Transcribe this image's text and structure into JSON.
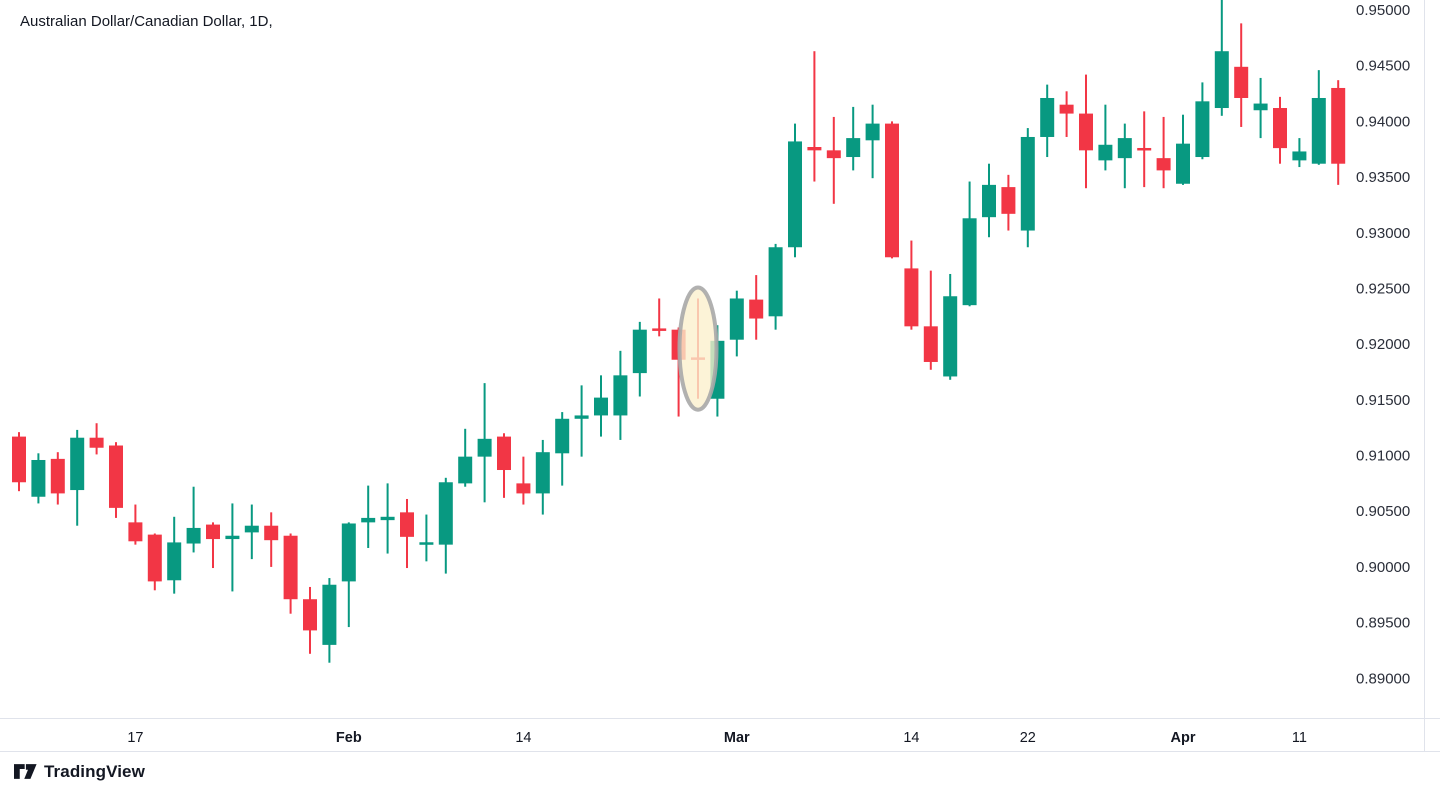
{
  "header": {
    "title": "Australian Dollar/Canadian Dollar, 1D,"
  },
  "attribution": {
    "brand": "TradingView"
  },
  "colors": {
    "up": "#089981",
    "down": "#f23645",
    "text": "#131722",
    "axis_text": "#2a2e39",
    "border": "#e0e3eb",
    "background": "#ffffff",
    "highlight_fill": "#fbf0cc",
    "highlight_stroke": "#a9a9a9"
  },
  "price_axis": {
    "labels": [
      "0.95000",
      "0.94500",
      "0.94000",
      "0.93500",
      "0.93000",
      "0.92500",
      "0.92000",
      "0.91500",
      "0.91000",
      "0.90500",
      "0.90000",
      "0.89500",
      "0.89000"
    ]
  },
  "time_axis": {
    "labels": [
      {
        "text": "17",
        "candle_index": 6,
        "bold": false
      },
      {
        "text": "Feb",
        "candle_index": 17,
        "bold": true
      },
      {
        "text": "14",
        "candle_index": 26,
        "bold": false
      },
      {
        "text": "Mar",
        "candle_index": 37,
        "bold": true
      },
      {
        "text": "14",
        "candle_index": 46,
        "bold": false
      },
      {
        "text": "22",
        "candle_index": 52,
        "bold": false
      },
      {
        "text": "Apr",
        "candle_index": 60,
        "bold": true
      },
      {
        "text": "11",
        "candle_index": 66,
        "bold": false
      }
    ]
  },
  "chart_data": {
    "type": "candlestick",
    "title": "Australian Dollar/Canadian Dollar",
    "interval": "1D",
    "ylabel": "Price",
    "ylim": [
      0.8875,
      0.951
    ],
    "axis_top_price": 0.95,
    "axis_bottom_price": 0.89,
    "axis_step": 0.005,
    "grid": false,
    "legend_position": "none",
    "highlight": {
      "candle_index": 35,
      "shape": "ellipse",
      "note": "highlighted doji candle"
    },
    "candles": [
      {
        "t": "Jan 7",
        "o": 0.9117,
        "h": 0.9121,
        "l": 0.9068,
        "c": 0.9076
      },
      {
        "t": "Jan 10",
        "o": 0.9063,
        "h": 0.9102,
        "l": 0.9057,
        "c": 0.9096
      },
      {
        "t": "Jan 11",
        "o": 0.9097,
        "h": 0.9103,
        "l": 0.9056,
        "c": 0.9066
      },
      {
        "t": "Jan 12",
        "o": 0.9069,
        "h": 0.9123,
        "l": 0.9037,
        "c": 0.9116
      },
      {
        "t": "Jan 13",
        "o": 0.9116,
        "h": 0.9129,
        "l": 0.9101,
        "c": 0.9107
      },
      {
        "t": "Jan 14",
        "o": 0.9109,
        "h": 0.9112,
        "l": 0.9044,
        "c": 0.9053
      },
      {
        "t": "Jan 17",
        "o": 0.904,
        "h": 0.9056,
        "l": 0.902,
        "c": 0.9023
      },
      {
        "t": "Jan 18",
        "o": 0.9029,
        "h": 0.903,
        "l": 0.8979,
        "c": 0.8987
      },
      {
        "t": "Jan 19",
        "o": 0.8988,
        "h": 0.9045,
        "l": 0.8976,
        "c": 0.9022
      },
      {
        "t": "Jan 20",
        "o": 0.9021,
        "h": 0.9072,
        "l": 0.9013,
        "c": 0.9035
      },
      {
        "t": "Jan 21",
        "o": 0.9038,
        "h": 0.904,
        "l": 0.8999,
        "c": 0.9025
      },
      {
        "t": "Jan 24",
        "o": 0.9025,
        "h": 0.9057,
        "l": 0.8978,
        "c": 0.9028
      },
      {
        "t": "Jan 25",
        "o": 0.9031,
        "h": 0.9056,
        "l": 0.9007,
        "c": 0.9037
      },
      {
        "t": "Jan 26",
        "o": 0.9037,
        "h": 0.9049,
        "l": 0.9,
        "c": 0.9024
      },
      {
        "t": "Jan 27",
        "o": 0.9028,
        "h": 0.903,
        "l": 0.8958,
        "c": 0.8971
      },
      {
        "t": "Jan 28",
        "o": 0.8971,
        "h": 0.8982,
        "l": 0.8922,
        "c": 0.8943
      },
      {
        "t": "Jan 31",
        "o": 0.893,
        "h": 0.899,
        "l": 0.8914,
        "c": 0.8984
      },
      {
        "t": "Feb 1",
        "o": 0.8987,
        "h": 0.904,
        "l": 0.8946,
        "c": 0.9039
      },
      {
        "t": "Feb 2",
        "o": 0.904,
        "h": 0.9073,
        "l": 0.9017,
        "c": 0.9044
      },
      {
        "t": "Feb 3",
        "o": 0.9042,
        "h": 0.9075,
        "l": 0.9012,
        "c": 0.9045
      },
      {
        "t": "Feb 4",
        "o": 0.9049,
        "h": 0.9061,
        "l": 0.8999,
        "c": 0.9027
      },
      {
        "t": "Feb 7",
        "o": 0.902,
        "h": 0.9047,
        "l": 0.9005,
        "c": 0.9022
      },
      {
        "t": "Feb 8",
        "o": 0.902,
        "h": 0.908,
        "l": 0.8994,
        "c": 0.9076
      },
      {
        "t": "Feb 9",
        "o": 0.9075,
        "h": 0.9124,
        "l": 0.9072,
        "c": 0.9099
      },
      {
        "t": "Feb 10",
        "o": 0.9099,
        "h": 0.9165,
        "l": 0.9058,
        "c": 0.9115
      },
      {
        "t": "Feb 11",
        "o": 0.9117,
        "h": 0.912,
        "l": 0.9062,
        "c": 0.9087
      },
      {
        "t": "Feb 14",
        "o": 0.9075,
        "h": 0.9099,
        "l": 0.9056,
        "c": 0.9066
      },
      {
        "t": "Feb 15",
        "o": 0.9066,
        "h": 0.9114,
        "l": 0.9047,
        "c": 0.9103
      },
      {
        "t": "Feb 16",
        "o": 0.9102,
        "h": 0.9139,
        "l": 0.9073,
        "c": 0.9133
      },
      {
        "t": "Feb 17",
        "o": 0.9133,
        "h": 0.9163,
        "l": 0.9099,
        "c": 0.9136
      },
      {
        "t": "Feb 18",
        "o": 0.9136,
        "h": 0.9172,
        "l": 0.9117,
        "c": 0.9152
      },
      {
        "t": "Feb 21",
        "o": 0.9136,
        "h": 0.9194,
        "l": 0.9114,
        "c": 0.9172
      },
      {
        "t": "Feb 22",
        "o": 0.9174,
        "h": 0.922,
        "l": 0.9153,
        "c": 0.9213
      },
      {
        "t": "Feb 23",
        "o": 0.9214,
        "h": 0.9241,
        "l": 0.9207,
        "c": 0.9212
      },
      {
        "t": "Feb 24",
        "o": 0.9213,
        "h": 0.9215,
        "l": 0.9135,
        "c": 0.9186
      },
      {
        "t": "Feb 25",
        "o": 0.9188,
        "h": 0.9241,
        "l": 0.9151,
        "c": 0.9186
      },
      {
        "t": "Feb 28",
        "o": 0.9151,
        "h": 0.9217,
        "l": 0.9135,
        "c": 0.9203
      },
      {
        "t": "Mar 1",
        "o": 0.9204,
        "h": 0.9248,
        "l": 0.9189,
        "c": 0.9241
      },
      {
        "t": "Mar 2",
        "o": 0.924,
        "h": 0.9262,
        "l": 0.9204,
        "c": 0.9223
      },
      {
        "t": "Mar 3",
        "o": 0.9225,
        "h": 0.929,
        "l": 0.9213,
        "c": 0.9287
      },
      {
        "t": "Mar 4",
        "o": 0.9287,
        "h": 0.9398,
        "l": 0.9278,
        "c": 0.9382
      },
      {
        "t": "Mar 7",
        "o": 0.9377,
        "h": 0.9463,
        "l": 0.9346,
        "c": 0.9374
      },
      {
        "t": "Mar 8",
        "o": 0.9374,
        "h": 0.9404,
        "l": 0.9326,
        "c": 0.9367
      },
      {
        "t": "Mar 9",
        "o": 0.9368,
        "h": 0.9413,
        "l": 0.9356,
        "c": 0.9385
      },
      {
        "t": "Mar 10",
        "o": 0.9383,
        "h": 0.9415,
        "l": 0.9349,
        "c": 0.9398
      },
      {
        "t": "Mar 11",
        "o": 0.9398,
        "h": 0.94,
        "l": 0.9277,
        "c": 0.9278
      },
      {
        "t": "Mar 14",
        "o": 0.9268,
        "h": 0.9293,
        "l": 0.9213,
        "c": 0.9216
      },
      {
        "t": "Mar 15",
        "o": 0.9216,
        "h": 0.9266,
        "l": 0.9177,
        "c": 0.9184
      },
      {
        "t": "Mar 16",
        "o": 0.9171,
        "h": 0.9263,
        "l": 0.9168,
        "c": 0.9243
      },
      {
        "t": "Mar 17",
        "o": 0.9235,
        "h": 0.9346,
        "l": 0.9234,
        "c": 0.9313
      },
      {
        "t": "Mar 18",
        "o": 0.9314,
        "h": 0.9362,
        "l": 0.9296,
        "c": 0.9343
      },
      {
        "t": "Mar 21",
        "o": 0.9341,
        "h": 0.9352,
        "l": 0.9302,
        "c": 0.9317
      },
      {
        "t": "Mar 22",
        "o": 0.9302,
        "h": 0.9394,
        "l": 0.9287,
        "c": 0.9386
      },
      {
        "t": "Mar 23",
        "o": 0.9386,
        "h": 0.9433,
        "l": 0.9368,
        "c": 0.9421
      },
      {
        "t": "Mar 24",
        "o": 0.9415,
        "h": 0.9427,
        "l": 0.9386,
        "c": 0.9407
      },
      {
        "t": "Mar 25",
        "o": 0.9407,
        "h": 0.9442,
        "l": 0.934,
        "c": 0.9374
      },
      {
        "t": "Mar 28",
        "o": 0.9365,
        "h": 0.9415,
        "l": 0.9356,
        "c": 0.9379
      },
      {
        "t": "Mar 29",
        "o": 0.9367,
        "h": 0.9398,
        "l": 0.934,
        "c": 0.9385
      },
      {
        "t": "Mar 30",
        "o": 0.9376,
        "h": 0.9409,
        "l": 0.9341,
        "c": 0.9374
      },
      {
        "t": "Mar 31",
        "o": 0.9367,
        "h": 0.9404,
        "l": 0.934,
        "c": 0.9356
      },
      {
        "t": "Apr 1",
        "o": 0.9344,
        "h": 0.9406,
        "l": 0.9343,
        "c": 0.938
      },
      {
        "t": "Apr 4",
        "o": 0.9368,
        "h": 0.9435,
        "l": 0.9366,
        "c": 0.9418
      },
      {
        "t": "Apr 5",
        "o": 0.9412,
        "h": 0.951,
        "l": 0.9405,
        "c": 0.9463
      },
      {
        "t": "Apr 6",
        "o": 0.9449,
        "h": 0.9488,
        "l": 0.9395,
        "c": 0.9421
      },
      {
        "t": "Apr 7",
        "o": 0.941,
        "h": 0.9439,
        "l": 0.9385,
        "c": 0.9416
      },
      {
        "t": "Apr 8",
        "o": 0.9412,
        "h": 0.9422,
        "l": 0.9362,
        "c": 0.9376
      },
      {
        "t": "Apr 11",
        "o": 0.9365,
        "h": 0.9385,
        "l": 0.9359,
        "c": 0.9373
      },
      {
        "t": "Apr 12",
        "o": 0.9362,
        "h": 0.9446,
        "l": 0.9361,
        "c": 0.9421
      },
      {
        "t": "Apr 13",
        "o": 0.943,
        "h": 0.9437,
        "l": 0.9343,
        "c": 0.9362
      }
    ]
  }
}
